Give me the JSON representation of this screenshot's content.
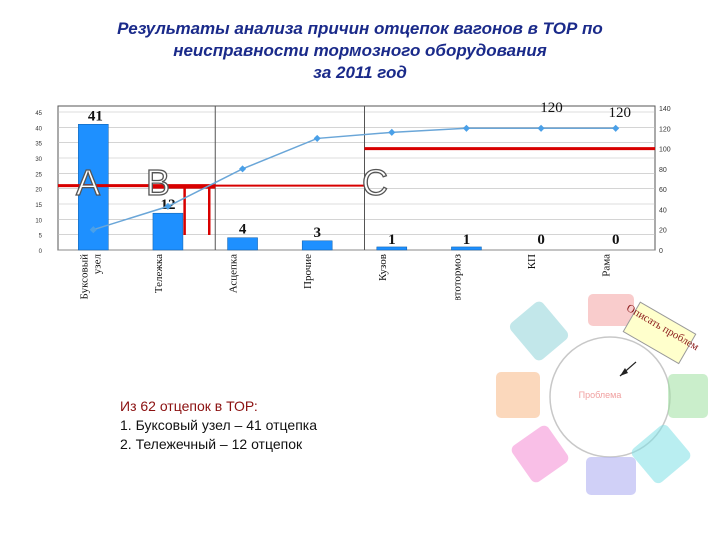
{
  "title_lines": [
    "Результаты анализа причин отцепок вагонов в ТОР по",
    "неисправности тормозного оборудования",
    "за 2011 год"
  ],
  "chart_data": {
    "type": "bar",
    "categories": [
      "Буксовый узел",
      "Тележка",
      "Асцепка",
      "Прочие",
      "Кузов",
      "Автотормоз",
      "КП",
      "Рама"
    ],
    "values": [
      41,
      12,
      4,
      3,
      1,
      1,
      0,
      0
    ],
    "value_labels": [
      "41",
      "12",
      "4",
      "3",
      "1",
      "1",
      "0",
      "0"
    ],
    "cumulative": {
      "values": [
        20,
        43,
        80,
        110,
        116,
        120,
        120,
        120
      ],
      "labels": [
        "120",
        "120"
      ]
    },
    "left_ticks": [
      "45",
      "40",
      "35",
      "30",
      "25",
      "20",
      "15",
      "10",
      "5",
      "0"
    ],
    "right_ticks": [
      "140",
      "120",
      "100",
      "80",
      "60",
      "40",
      "20",
      "0"
    ],
    "ylim_left": [
      0,
      45
    ],
    "ylim_right": [
      0,
      140
    ],
    "zones": [
      "A",
      "B",
      "C"
    ],
    "bar_color": "#1e90ff",
    "line_color": "#6aa6d8",
    "zone_line_color": "#d80000"
  },
  "note": {
    "head": "Из 62 отцепок в ТОР:",
    "lines": [
      "1. Буксовый узел – 41 отцепка",
      "2. Тележечный – 12 отцепок"
    ]
  },
  "cycle": {
    "callout": "Описать проблем",
    "center": "Проблема"
  }
}
